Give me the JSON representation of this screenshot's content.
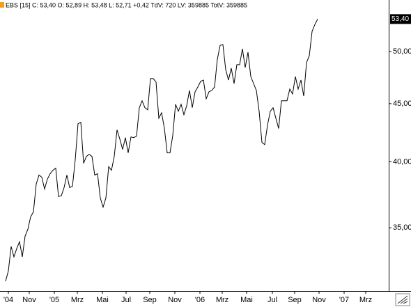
{
  "chart_data": {
    "type": "line",
    "log_scale": true,
    "title": "EBS [15] C: 53,40 O: 52,89 H: 53,48 L: 52,71 +0,42 TdV: 720 LV: 359885 TotV: 359885",
    "color": "#000000",
    "values": [
      31.41,
      32.08,
      33.7,
      33.0,
      33.56,
      34.03,
      33.0,
      34.41,
      34.9,
      35.79,
      36.15,
      38.24,
      38.94,
      38.78,
      37.86,
      38.62,
      39.05,
      39.32,
      39.49,
      37.29,
      37.34,
      37.97,
      38.94,
      37.97,
      38.07,
      40.17,
      43.21,
      43.33,
      39.88,
      40.44,
      40.62,
      40.44,
      38.94,
      39.05,
      37.18,
      36.5,
      37.18,
      39.61,
      39.32,
      40.44,
      42.67,
      41.89,
      41.02,
      42.01,
      40.73,
      42.07,
      42.01,
      42.13,
      44.63,
      45.26,
      44.63,
      44.44,
      47.34,
      47.34,
      47.0,
      43.69,
      44.18,
      42.79,
      40.73,
      40.73,
      42.19,
      44.94,
      44.31,
      44.94,
      44.0,
      44.81,
      46.22,
      44.63,
      46.09,
      46.54,
      47.07,
      47.2,
      45.45,
      46.09,
      46.22,
      46.54,
      49.24,
      50.64,
      50.71,
      48.21,
      47.2,
      48.34,
      46.87,
      48.69,
      48.69,
      50.28,
      48.41,
      49.93,
      47.54,
      46.87,
      46.22,
      44.31,
      41.6,
      41.42,
      43.08,
      44.31,
      44.63,
      43.69,
      42.79,
      45.26,
      45.26,
      45.26,
      46.35,
      45.89,
      47.54,
      46.35,
      47.2,
      45.7,
      48.89,
      49.58,
      52.08,
      52.81,
      53.4
    ],
    "current_label": {
      "value": 53.4,
      "label": "53,40"
    },
    "xlim": [
      -2,
      137.5
    ],
    "xticks": [
      {
        "value": 1,
        "label": "'04"
      },
      {
        "value": 8.5,
        "label": "Nov"
      },
      {
        "value": 17.5,
        "label": "'05"
      },
      {
        "value": 25.75,
        "label": "Mrz"
      },
      {
        "value": 34.75,
        "label": "Mai"
      },
      {
        "value": 43.25,
        "label": "Jul"
      },
      {
        "value": 51.75,
        "label": "Sep"
      },
      {
        "value": 60.75,
        "label": "Nov"
      },
      {
        "value": 69.75,
        "label": "'06"
      },
      {
        "value": 77.75,
        "label": "Mrz"
      },
      {
        "value": 86.5,
        "label": "Mai"
      },
      {
        "value": 95.75,
        "label": "Jul"
      },
      {
        "value": 103.75,
        "label": "Sep"
      },
      {
        "value": 112.5,
        "label": "Nov"
      },
      {
        "value": 121.5,
        "label": "'07"
      },
      {
        "value": 129.25,
        "label": "Mrz"
      }
    ],
    "ylim": [
      30.8,
      55.5
    ],
    "yticks": [
      {
        "value": 35,
        "label": "35,00"
      },
      {
        "value": 40,
        "label": "40,00"
      },
      {
        "value": 45,
        "label": "45,00"
      },
      {
        "value": 50,
        "label": "50,00"
      }
    ]
  }
}
